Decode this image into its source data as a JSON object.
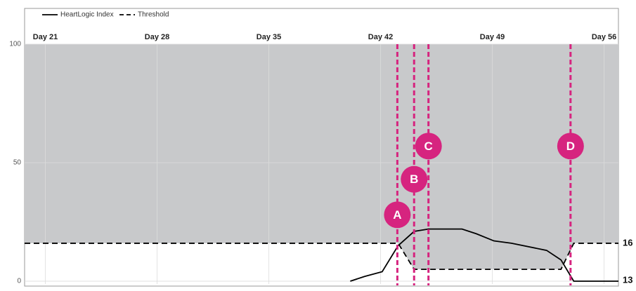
{
  "chart_data": {
    "type": "line",
    "xlim": [
      19.7,
      56.9
    ],
    "xticks": [
      {
        "value": 21,
        "label": "Day 21"
      },
      {
        "value": 28,
        "label": "Day 28"
      },
      {
        "value": 35,
        "label": "Day 35"
      },
      {
        "value": 42,
        "label": "Day 42"
      },
      {
        "value": 49,
        "label": "Day 49"
      },
      {
        "value": 56,
        "label": "Day 56"
      }
    ],
    "ylim": [
      0,
      100
    ],
    "yticks": [
      0,
      50,
      100
    ],
    "grid": true,
    "series": [
      {
        "name": "HeartLogic Index",
        "color": "#000000",
        "dash": false,
        "x": [
          40.1,
          41,
          42.1,
          43.1,
          44.1,
          45,
          47.1,
          48,
          49.1,
          50.2,
          52.4,
          53.3,
          54.1,
          56.9
        ],
        "values": [
          0,
          2,
          4,
          15,
          21,
          22,
          22,
          20,
          17,
          16,
          13,
          9,
          0,
          0
        ]
      },
      {
        "name": "Threshold",
        "color": "#000000",
        "dash": true,
        "x": [
          19.7,
          43.1,
          44.1,
          53.3,
          54.1,
          56.9
        ],
        "values": [
          16,
          16,
          5,
          5,
          16,
          16
        ]
      }
    ],
    "shade_above_series": 1,
    "shade_color": "#c8c9cb",
    "events": [
      {
        "label": "A",
        "x": 43.05,
        "y": 28
      },
      {
        "label": "B",
        "x": 44.1,
        "y": 43
      },
      {
        "label": "C",
        "x": 45.0,
        "y": 57
      },
      {
        "label": "D",
        "x": 53.9,
        "y": 57
      }
    ],
    "event_color": "#d6247f",
    "end_labels": [
      "16",
      "13"
    ]
  }
}
